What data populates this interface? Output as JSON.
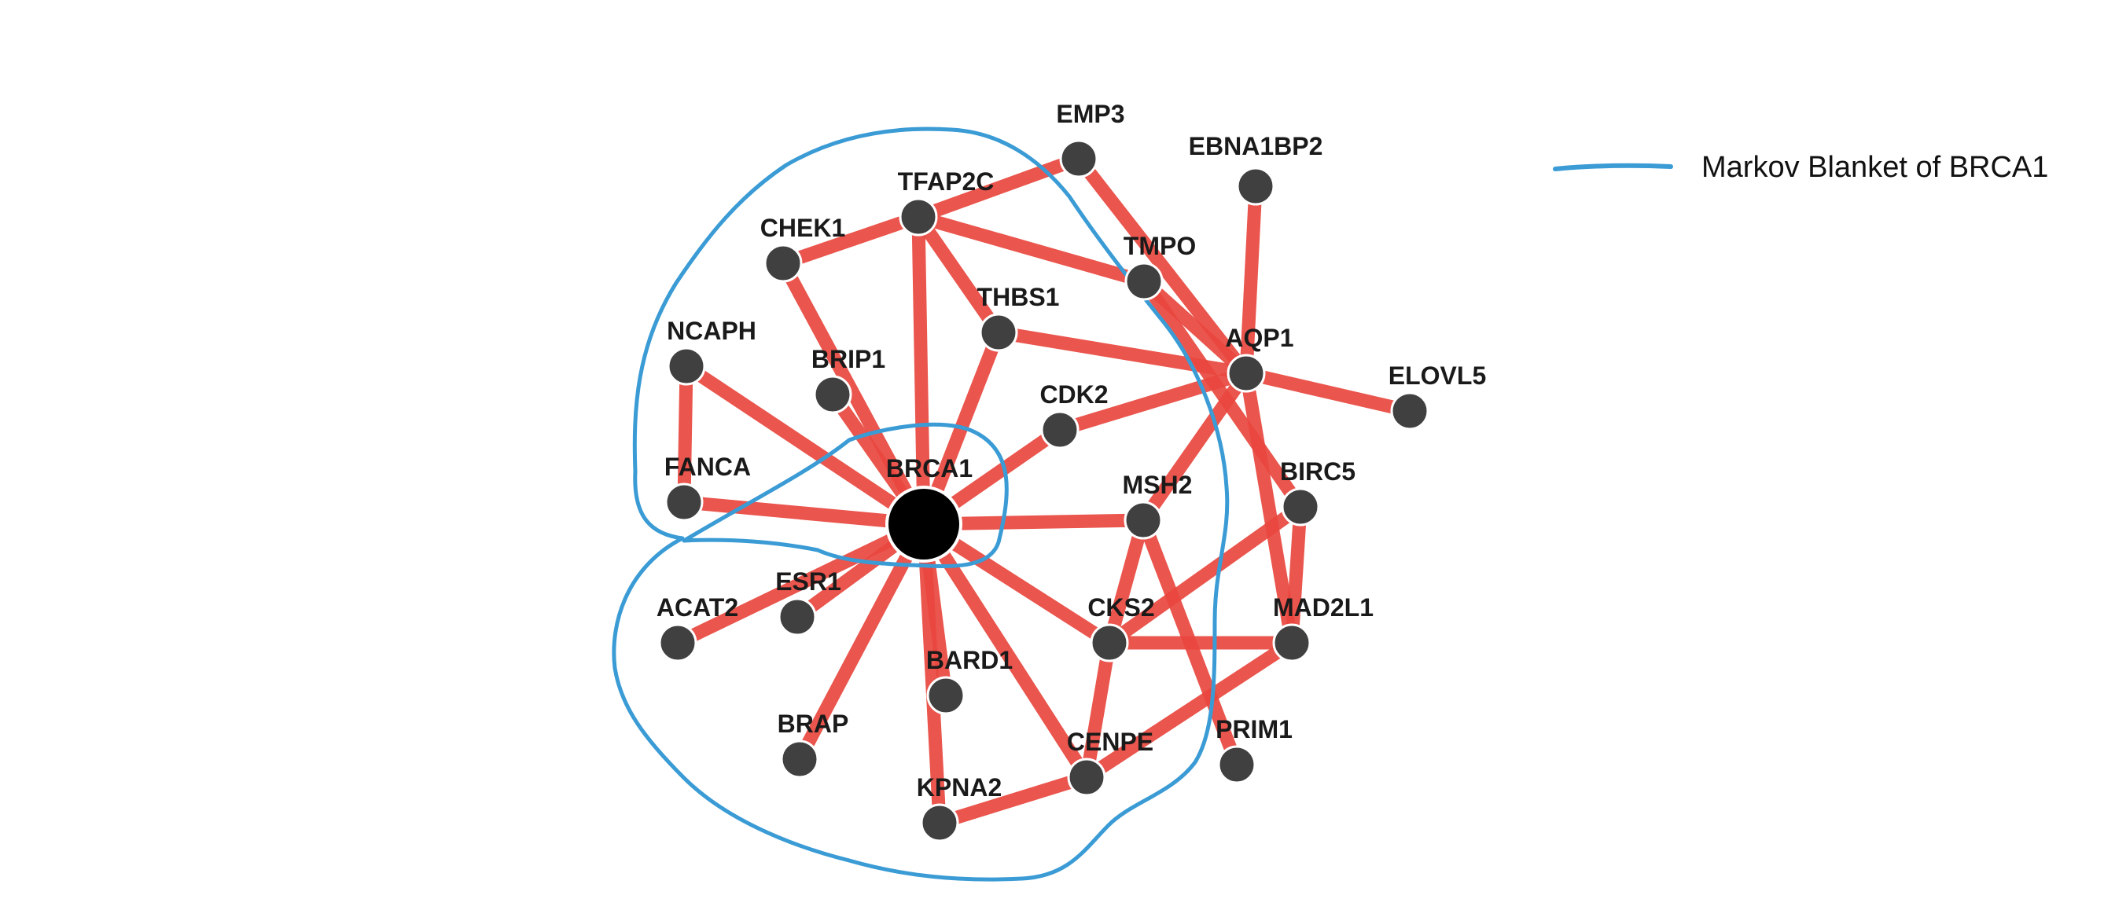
{
  "legend": {
    "label": "Markov Blanket of BRCA1",
    "color": "#3a9bd5"
  },
  "colors": {
    "edge": "#e8473e",
    "node": "#404040",
    "hub": "#000000"
  },
  "hub": "BRCA1",
  "nodes": [
    "EMP3",
    "EBNA1BP2",
    "TFAP2C",
    "CHEK1",
    "TMPO",
    "THBS1",
    "AQP1",
    "ELOVL5",
    "NCAPH",
    "BRIP1",
    "CDK2",
    "FANCA",
    "BRCA1",
    "MSH2",
    "BIRC5",
    "ESR1",
    "ACAT2",
    "CKS2",
    "MAD2L1",
    "BARD1",
    "BRAP",
    "CENPE",
    "PRIM1",
    "KPNA2"
  ],
  "edges": [
    [
      "EMP3",
      "TFAP2C"
    ],
    [
      "EMP3",
      "AQP1"
    ],
    [
      "TFAP2C",
      "CHEK1"
    ],
    [
      "TFAP2C",
      "TMPO"
    ],
    [
      "TFAP2C",
      "THBS1"
    ],
    [
      "TFAP2C",
      "BRCA1"
    ],
    [
      "CHEK1",
      "BRCA1"
    ],
    [
      "TMPO",
      "AQP1"
    ],
    [
      "TMPO",
      "BIRC5"
    ],
    [
      "THBS1",
      "AQP1"
    ],
    [
      "THBS1",
      "BRCA1"
    ],
    [
      "EBNA1BP2",
      "AQP1"
    ],
    [
      "AQP1",
      "ELOVL5"
    ],
    [
      "AQP1",
      "CDK2"
    ],
    [
      "AQP1",
      "MSH2"
    ],
    [
      "AQP1",
      "MAD2L1"
    ],
    [
      "NCAPH",
      "FANCA"
    ],
    [
      "NCAPH",
      "BRCA1"
    ],
    [
      "BRIP1",
      "BRCA1"
    ],
    [
      "CDK2",
      "BRCA1"
    ],
    [
      "FANCA",
      "BRCA1"
    ],
    [
      "BRCA1",
      "MSH2"
    ],
    [
      "BRCA1",
      "ESR1"
    ],
    [
      "BRCA1",
      "ACAT2"
    ],
    [
      "BRCA1",
      "CKS2"
    ],
    [
      "BRCA1",
      "BARD1"
    ],
    [
      "BRCA1",
      "BRAP"
    ],
    [
      "BRCA1",
      "CENPE"
    ],
    [
      "BRCA1",
      "KPNA2"
    ],
    [
      "MSH2",
      "CKS2"
    ],
    [
      "MSH2",
      "PRIM1"
    ],
    [
      "BIRC5",
      "CKS2"
    ],
    [
      "BIRC5",
      "MAD2L1"
    ],
    [
      "CKS2",
      "MAD2L1"
    ],
    [
      "CKS2",
      "CENPE"
    ],
    [
      "MAD2L1",
      "CENPE"
    ],
    [
      "CENPE",
      "KPNA2"
    ]
  ]
}
